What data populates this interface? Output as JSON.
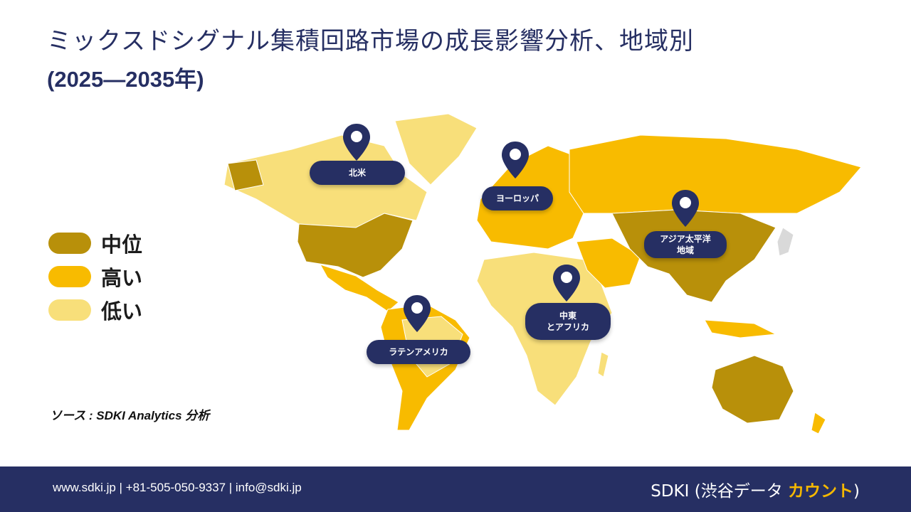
{
  "title": "ミックスドシグナル集積回路市場の成長影響分析、地域別",
  "subtitle": "(2025—2035年)",
  "legend": [
    {
      "label": "中位",
      "color": "#b8900a"
    },
    {
      "label": "高い",
      "color": "#f8bb00"
    },
    {
      "label": "低い",
      "color": "#f8df7a"
    }
  ],
  "regions": {
    "north_america": {
      "line1": "北米",
      "line2": ""
    },
    "europe": {
      "line1": "ヨーロッパ",
      "line2": ""
    },
    "asia_pacific": {
      "line1": "アジア太平洋",
      "line2": "地域"
    },
    "middle_east_africa": {
      "line1": "中東",
      "line2": "とアフリカ"
    },
    "latin_america": {
      "line1": "ラテンアメリカ",
      "line2": ""
    }
  },
  "source": "ソース : SDKI Analytics 分析",
  "footer": {
    "contact": "www.sdki.jp | +81-505-050-9337 | info@sdki.jp",
    "brand_main": "SDKI (渋谷データ ",
    "brand_accent": "カウント",
    "brand_close": ")"
  },
  "colors": {
    "navy": "#262f63",
    "medium": "#b8900a",
    "high": "#f8bb00",
    "low": "#f8df7a",
    "unrated": "#d9d9d9"
  }
}
